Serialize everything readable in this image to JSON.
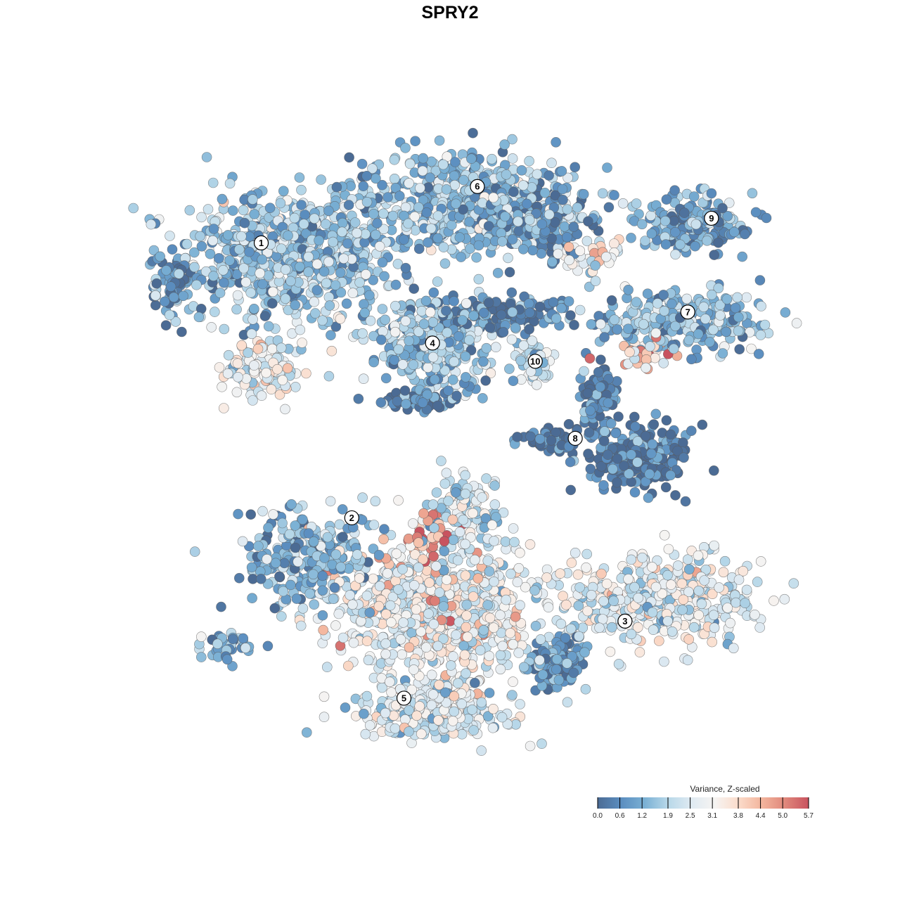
{
  "chart_data": {
    "type": "scatter",
    "title": "SPRY2",
    "xlabel": "",
    "ylabel": "",
    "xlim": [
      -40,
      40
    ],
    "ylim": [
      -40,
      40
    ],
    "grid": false,
    "color_variable": "Variance, Z-scaled",
    "colorbar": {
      "title": "Variance, Z-scaled",
      "placement": "bottom-right",
      "ticks": [
        "0.0",
        "0.6",
        "1.2",
        "1.9",
        "2.5",
        "3.1",
        "3.8",
        "4.4",
        "5.0",
        "5.7"
      ],
      "tick_values": [
        0.0,
        0.6,
        1.2,
        1.9,
        2.5,
        3.1,
        3.8,
        4.4,
        5.0,
        5.7
      ],
      "range": [
        0,
        5.7
      ],
      "colors": [
        "#4b6b94",
        "#5b8ec0",
        "#7ab0d4",
        "#b8d8e9",
        "#dfeaf2",
        "#f6f4f2",
        "#fbdccb",
        "#f3b59d",
        "#e0877b",
        "#c8535f"
      ]
    },
    "cluster_labels": [
      {
        "label": "1",
        "x": -25.3,
        "y": 25.8
      },
      {
        "label": "6",
        "x": 1.2,
        "y": 32.9
      },
      {
        "label": "9",
        "x": 29.9,
        "y": 28.9
      },
      {
        "label": "7",
        "x": 27.0,
        "y": 17.1
      },
      {
        "label": "4",
        "x": -4.3,
        "y": 13.2
      },
      {
        "label": "10",
        "x": 8.3,
        "y": 10.9
      },
      {
        "label": "8",
        "x": 13.2,
        "y": 1.2
      },
      {
        "label": "2",
        "x": -14.2,
        "y": -8.8
      },
      {
        "label": "3",
        "x": 19.3,
        "y": -21.8
      },
      {
        "label": "5",
        "x": -7.8,
        "y": -31.5
      }
    ],
    "point_groups": [
      {
        "cluster": "1",
        "x": -22,
        "y": 24,
        "sx": 11,
        "sy": 7,
        "n": 700,
        "mean": 1.6
      },
      {
        "cluster": "1",
        "x": -25,
        "y": 10,
        "sx": 4,
        "sy": 3.5,
        "n": 120,
        "mean": 3.0
      },
      {
        "cluster": "1",
        "x": -36,
        "y": 21,
        "sx": 2,
        "sy": 4,
        "n": 60,
        "mean": 0.8
      },
      {
        "cluster": "6",
        "x": 0,
        "y": 31,
        "sx": 12,
        "sy": 5,
        "n": 600,
        "mean": 1.4
      },
      {
        "cluster": "6",
        "x": 9,
        "y": 28,
        "sx": 5,
        "sy": 3.5,
        "n": 150,
        "mean": 0.7
      },
      {
        "cluster": "6",
        "x": 15,
        "y": 24,
        "sx": 3,
        "sy": 2,
        "n": 40,
        "mean": 3.0
      },
      {
        "cluster": "9",
        "x": 28,
        "y": 28,
        "sx": 6,
        "sy": 3,
        "n": 200,
        "mean": 1.0
      },
      {
        "cluster": "7",
        "x": 26,
        "y": 16,
        "sx": 9,
        "sy": 3,
        "n": 250,
        "mean": 1.4
      },
      {
        "cluster": "7",
        "x": 21,
        "y": 12,
        "sx": 3,
        "sy": 1.3,
        "n": 30,
        "mean": 4.5
      },
      {
        "cluster": "4",
        "x": -4,
        "y": 13,
        "sx": 6,
        "sy": 4.5,
        "n": 350,
        "mean": 1.6
      },
      {
        "cluster": "4",
        "x": 4,
        "y": 17,
        "sx": 7,
        "sy": 1.8,
        "n": 130,
        "mean": 0.3
      },
      {
        "cluster": "4",
        "x": -6,
        "y": 6,
        "sx": 4,
        "sy": 1.2,
        "n": 50,
        "mean": 0.3
      },
      {
        "cluster": "10",
        "x": 8,
        "y": 11,
        "sx": 1.8,
        "sy": 2.5,
        "n": 60,
        "mean": 2.2
      },
      {
        "cluster": "8",
        "x": 21,
        "y": -1,
        "sx": 5,
        "sy": 3.5,
        "n": 250,
        "mean": 0.3
      },
      {
        "cluster": "8",
        "x": 16,
        "y": 6,
        "sx": 1.8,
        "sy": 4,
        "n": 90,
        "mean": 0.3
      },
      {
        "cluster": "8",
        "x": 10,
        "y": 1,
        "sx": 3,
        "sy": 1.2,
        "n": 50,
        "mean": 0.3
      },
      {
        "cluster": "2",
        "x": -20,
        "y": -14,
        "sx": 7,
        "sy": 5,
        "n": 250,
        "mean": 1.3
      },
      {
        "cluster": "3",
        "x": 23,
        "y": -19,
        "sx": 10,
        "sy": 4.5,
        "n": 450,
        "mean": 2.6
      },
      {
        "cluster": "3",
        "x": 11,
        "y": -27,
        "sx": 3,
        "sy": 3,
        "n": 120,
        "mean": 0.9
      },
      {
        "cluster": "5",
        "x": -4,
        "y": -20,
        "sx": 10,
        "sy": 7,
        "n": 700,
        "mean": 2.8
      },
      {
        "cluster": "5",
        "x": -4,
        "y": -33,
        "sx": 8,
        "sy": 3,
        "n": 300,
        "mean": 2.6
      },
      {
        "cluster": "5",
        "x": 0,
        "y": -8,
        "sx": 4,
        "sy": 4,
        "n": 120,
        "mean": 2.2
      },
      {
        "cluster": "5",
        "x": -5,
        "y": -11,
        "sx": 3,
        "sy": 3,
        "n": 40,
        "mean": 4.9
      },
      {
        "cluster": "2",
        "x": -30,
        "y": -25,
        "sx": 3,
        "sy": 1.5,
        "n": 40,
        "mean": 1.0
      }
    ]
  }
}
